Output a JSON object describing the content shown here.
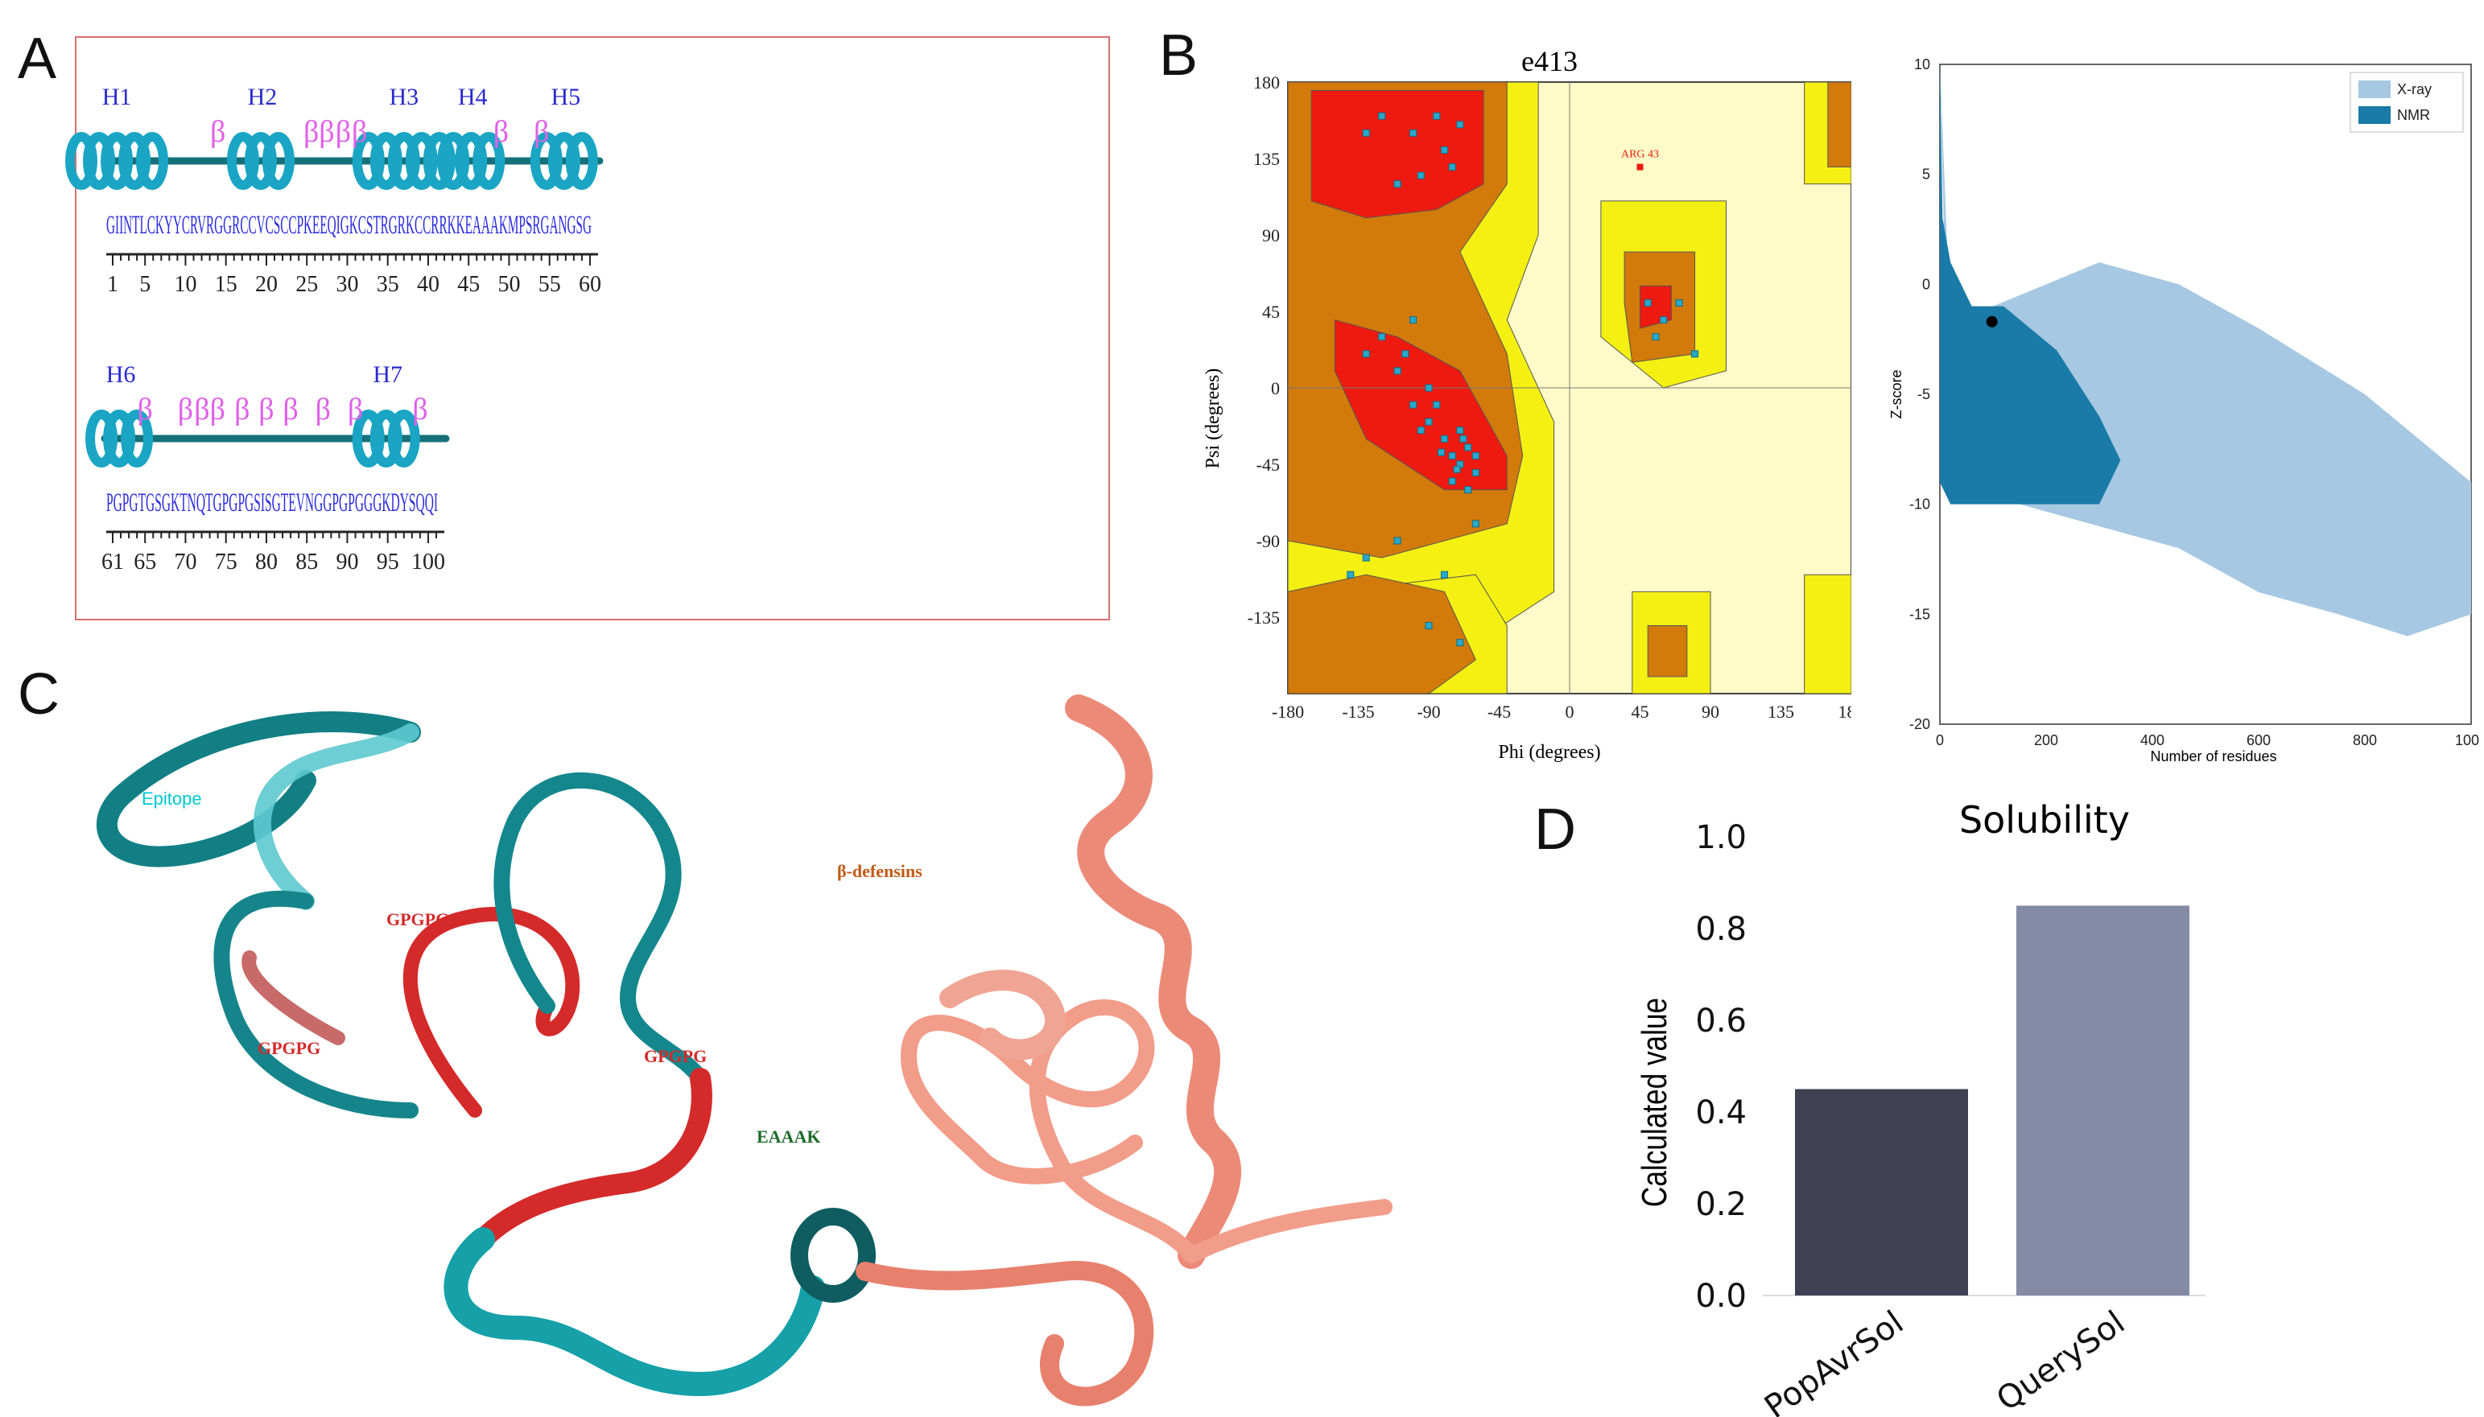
{
  "panel_labels": {
    "a": "A",
    "b": "B",
    "c": "C",
    "d": "D"
  },
  "panel_a": {
    "row1": {
      "helices": [
        {
          "label": "H1",
          "pos": 1.5
        },
        {
          "label": "H2",
          "pos": 19.5
        },
        {
          "label": "H3",
          "pos": 37
        },
        {
          "label": "H4",
          "pos": 45.5
        },
        {
          "label": "H5",
          "pos": 57
        }
      ],
      "betas": [
        {
          "label": "β",
          "pos": 14
        },
        {
          "label": "ββ",
          "pos": 26.5
        },
        {
          "label": "β",
          "pos": 29.5
        },
        {
          "label": "β",
          "pos": 31.5
        },
        {
          "label": "β",
          "pos": 49
        },
        {
          "label": "β",
          "pos": 54
        }
      ],
      "sequence": "GIINTLCKYYCRVRGGRCCVCSCCPKEEQIGKCSTRGRKCCRRKKEAAAKMPSRGANGSG",
      "ticks": [
        "1",
        "5",
        "10",
        "15",
        "20",
        "25",
        "30",
        "35",
        "40",
        "45",
        "50",
        "55",
        "60"
      ]
    },
    "row2": {
      "helices": [
        {
          "label": "H6",
          "pos": 62
        },
        {
          "label": "H7",
          "pos": 95
        }
      ],
      "betas": [
        {
          "label": "β",
          "pos": 65
        },
        {
          "label": "β",
          "pos": 70
        },
        {
          "label": "ββ",
          "pos": 73
        },
        {
          "label": "β",
          "pos": 77
        },
        {
          "label": "β",
          "pos": 80
        },
        {
          "label": "β",
          "pos": 83
        },
        {
          "label": "β",
          "pos": 87
        },
        {
          "label": "β",
          "pos": 91
        },
        {
          "label": "β",
          "pos": 99
        }
      ],
      "sequence": "PGPGTGSGKTNQTGPGPGSISGTEVNGGPGPGGGKDYSQQI",
      "ticks": [
        "61",
        "65",
        "70",
        "75",
        "80",
        "85",
        "90",
        "95",
        "100"
      ]
    }
  },
  "panel_b": {
    "ramachandran": {
      "title": "e413",
      "xlabel": "Phi (degrees)",
      "ylabel": "Psi (degrees)",
      "xticks": [
        "-180",
        "-135",
        "-90",
        "-45",
        "0",
        "45",
        "90",
        "135",
        "180"
      ],
      "yticks": [
        "180",
        "135",
        "90",
        "45",
        "0",
        "-45",
        "-90",
        "-135"
      ],
      "outlier_label": "ARG 43"
    },
    "zscore": {
      "ylabel": "Z-score",
      "xlabel": "Number of residues",
      "xticks": [
        "0",
        "200",
        "400",
        "600",
        "800",
        "1000"
      ],
      "yticks": [
        "10",
        "5",
        "0",
        "-5",
        "-10",
        "-15",
        "-20"
      ],
      "legend": [
        {
          "name": "X-ray",
          "color": "#a7c8e2"
        },
        {
          "name": "NMR",
          "color": "#1a7aa8"
        }
      ]
    }
  },
  "panel_c": {
    "labels": {
      "epitope": "Epitope",
      "gpgpg1": "GPGPG",
      "gpgpg2": "GPGPG",
      "gpgpg3": "GPGPG",
      "eaaak": "EAAAK",
      "defensins": "β-defensins"
    },
    "colors": {
      "epitope": "#00c8d0",
      "linker": "#d42a2a",
      "eaaak": "#1e6b2a",
      "defensin": "#e8806e",
      "teal": "#127f85"
    }
  },
  "panel_d": {
    "chart_data": {
      "type": "bar",
      "title": "Solubility",
      "ylabel": "Calculated value",
      "xlabel": "",
      "categories": [
        "PopAvrSol",
        "QuerySol"
      ],
      "values": [
        0.45,
        0.85
      ],
      "colors": [
        "#3f4152",
        "#858aa6"
      ],
      "ylim": [
        0,
        1.0
      ],
      "yticks": [
        "0.0",
        "0.2",
        "0.4",
        "0.6",
        "0.8",
        "1.0"
      ]
    }
  }
}
